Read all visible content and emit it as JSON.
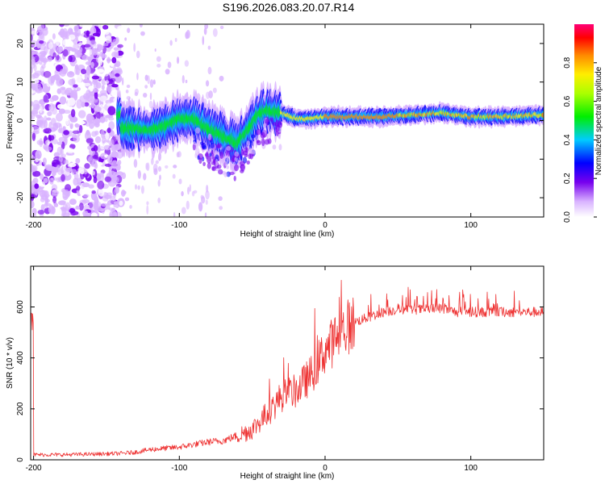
{
  "figure_title": "S196.2026.083.20.07.R14",
  "colors": {
    "signal": "#ee3333",
    "axis": "#000000"
  },
  "chart_data": [
    {
      "type": "heatmap",
      "title": "S196.2026.083.20.07.R14",
      "xlabel": "Height of straight line (km)",
      "ylabel": "Frequency (Hz)",
      "xlim": [
        -202,
        150
      ],
      "ylim": [
        -25,
        25
      ],
      "xticks": [
        -200,
        -100,
        0,
        100
      ],
      "yticks": [
        -20,
        -10,
        0,
        10,
        20
      ],
      "colorbar": {
        "label": "Normalized spectral amplitude",
        "range": [
          0,
          1
        ],
        "ticks": [
          0.0,
          0.2,
          0.4,
          0.6,
          0.8
        ]
      },
      "ridge": {
        "description_points_x": [
          -140,
          -130,
          -120,
          -110,
          -100,
          -90,
          -80,
          -70,
          -60,
          -50,
          -45,
          -40,
          -30,
          -20,
          -10,
          0,
          20,
          40,
          60,
          80,
          100,
          120,
          150
        ],
        "frequency_hz": [
          -2,
          -2,
          -2.5,
          -1.5,
          0.5,
          0.5,
          -2,
          -4,
          -6,
          -1,
          2,
          2.5,
          2,
          0.5,
          0.5,
          1,
          1,
          1,
          1.5,
          2,
          1,
          1,
          1.5
        ]
      }
    },
    {
      "type": "line",
      "xlabel": "Height of straight line (km)",
      "ylabel": "SNR (10 * v/v)",
      "xlim": [
        -202,
        150
      ],
      "ylim": [
        0,
        760
      ],
      "xticks": [
        -200,
        -100,
        0,
        100
      ],
      "yticks": [
        0,
        200,
        400,
        600
      ],
      "series": [
        {
          "name": "SNR",
          "x": [
            -200,
            -180,
            -160,
            -140,
            -130,
            -120,
            -110,
            -100,
            -90,
            -80,
            -70,
            -60,
            -50,
            -45,
            -40,
            -35,
            -30,
            -25,
            -20,
            -15,
            -10,
            -5,
            0,
            5,
            10,
            15,
            20,
            25,
            30,
            40,
            50,
            60,
            70,
            80,
            90,
            100,
            110,
            120,
            130,
            140,
            150
          ],
          "values": [
            20,
            20,
            22,
            25,
            30,
            40,
            45,
            50,
            60,
            70,
            75,
            95,
            120,
            150,
            180,
            210,
            250,
            260,
            270,
            300,
            330,
            380,
            430,
            460,
            500,
            520,
            540,
            550,
            560,
            580,
            590,
            590,
            590,
            595,
            580,
            580,
            580,
            580,
            580,
            580,
            580
          ]
        }
      ]
    }
  ]
}
